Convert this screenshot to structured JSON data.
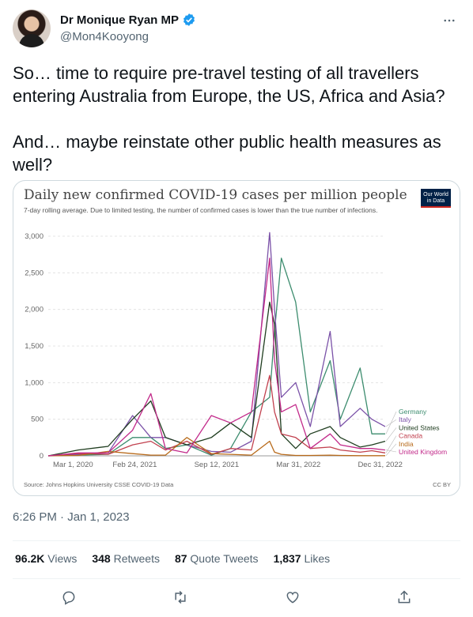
{
  "author": {
    "display_name": "Dr Monique Ryan MP",
    "handle": "@Mon4Kooyong",
    "verified_badge_icon": "verified-badge-icon",
    "accent_color": "#1d9bf0"
  },
  "more_icon": "more-horizontal-icon",
  "tweet": {
    "text": "So… time to require pre-travel testing of all travellers entering Australia from Europe, the US, Africa and Asia?\n\nAnd… maybe reinstate other public health measures as well?",
    "timestamp": "6:26 PM · Jan 1, 2023"
  },
  "stats": {
    "views_value": "96.2K",
    "views_label": "Views",
    "retweets_value": "348",
    "retweets_label": "Retweets",
    "quotes_value": "87",
    "quotes_label": "Quote Tweets",
    "likes_value": "1,837",
    "likes_label": "Likes"
  },
  "actions": [
    "reply-icon",
    "retweet-icon",
    "like-icon",
    "share-icon"
  ],
  "media": {
    "logo_line1": "Our World",
    "logo_line2": "in Data",
    "source": "Source: Johns Hopkins University CSSE COVID-19 Data",
    "license": "CC BY"
  },
  "chart_data": {
    "type": "line",
    "title": "Daily new confirmed COVID-19 cases per million people",
    "subtitle": "7-day rolling average. Due to limited testing, the number of confirmed cases is lower than the true number of infections.",
    "x_tick_labels": [
      "Mar 1, 2020",
      "Feb 24, 2021",
      "Sep 12, 2021",
      "Mar 31, 2022",
      "Dec 31, 2022"
    ],
    "y_tick_labels": [
      "0",
      "500",
      "1,000",
      "1,500",
      "2,000",
      "2,500",
      "3,000"
    ],
    "ylim": [
      0,
      3000
    ],
    "x": [
      "2020-03-01",
      "2020-06-01",
      "2020-09-01",
      "2020-11-15",
      "2021-01-10",
      "2021-02-24",
      "2021-05-01",
      "2021-07-15",
      "2021-09-12",
      "2021-11-15",
      "2022-01-10",
      "2022-01-25",
      "2022-02-15",
      "2022-03-31",
      "2022-05-15",
      "2022-07-15",
      "2022-08-15",
      "2022-10-15",
      "2022-11-20",
      "2022-12-31"
    ],
    "series": [
      {
        "name": "Germany",
        "color": "#3c8c6e",
        "values": [
          0,
          10,
          20,
          250,
          250,
          100,
          150,
          10,
          100,
          600,
          800,
          1700,
          2700,
          2100,
          600,
          1300,
          500,
          1200,
          300,
          300
        ]
      },
      {
        "name": "Italy",
        "color": "#7b52a8",
        "values": [
          0,
          20,
          40,
          550,
          250,
          250,
          150,
          60,
          50,
          200,
          3050,
          2000,
          800,
          1000,
          400,
          1700,
          400,
          650,
          500,
          400
        ]
      },
      {
        "name": "United States",
        "color": "#1f3d1f",
        "values": [
          0,
          80,
          130,
          500,
          750,
          250,
          150,
          250,
          450,
          250,
          2100,
          1800,
          300,
          100,
          300,
          400,
          250,
          120,
          150,
          200
        ]
      },
      {
        "name": "Canada",
        "color": "#c1404e",
        "values": [
          0,
          30,
          20,
          150,
          200,
          80,
          200,
          20,
          100,
          80,
          1100,
          600,
          300,
          250,
          100,
          120,
          80,
          50,
          70,
          40
        ]
      },
      {
        "name": "India",
        "color": "#b86a1a",
        "values": [
          0,
          5,
          60,
          30,
          10,
          10,
          250,
          30,
          20,
          10,
          200,
          50,
          20,
          5,
          5,
          10,
          5,
          2,
          2,
          2
        ]
      },
      {
        "name": "United Kingdom",
        "color": "#c22a8a",
        "values": [
          0,
          40,
          40,
          350,
          850,
          100,
          40,
          550,
          450,
          600,
          2700,
          1300,
          600,
          700,
          100,
          300,
          150,
          100,
          100,
          80
        ]
      }
    ]
  }
}
